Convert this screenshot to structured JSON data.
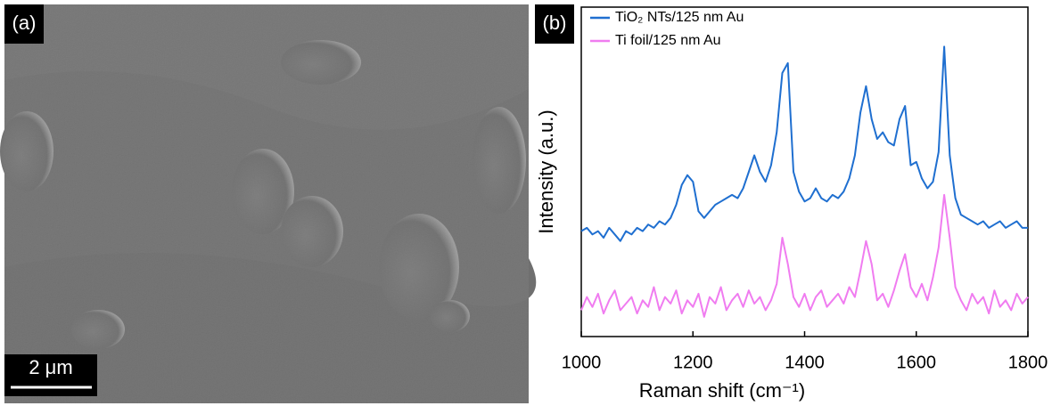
{
  "panel_a": {
    "label": "(a)",
    "scale_bar": "2 μm"
  },
  "chart_data": {
    "type": "line",
    "panel_label": "(b)",
    "xlabel": "Raman shift (cm⁻¹)",
    "ylabel": "Intensity (a.u.)",
    "xlim": [
      1000,
      1800
    ],
    "xticks": [
      1000,
      1200,
      1400,
      1600,
      1800
    ],
    "ylim": [
      0,
      100
    ],
    "x": [
      1000,
      1010,
      1020,
      1030,
      1040,
      1050,
      1060,
      1070,
      1080,
      1090,
      1100,
      1110,
      1120,
      1130,
      1140,
      1150,
      1160,
      1170,
      1180,
      1190,
      1200,
      1210,
      1220,
      1230,
      1240,
      1250,
      1260,
      1270,
      1280,
      1290,
      1300,
      1310,
      1320,
      1330,
      1340,
      1350,
      1360,
      1370,
      1380,
      1390,
      1400,
      1410,
      1420,
      1430,
      1440,
      1450,
      1460,
      1470,
      1480,
      1490,
      1500,
      1510,
      1520,
      1530,
      1540,
      1550,
      1560,
      1570,
      1580,
      1590,
      1600,
      1610,
      1620,
      1630,
      1640,
      1650,
      1660,
      1670,
      1680,
      1690,
      1700,
      1710,
      1720,
      1730,
      1740,
      1750,
      1760,
      1770,
      1780,
      1790,
      1800
    ],
    "series": [
      {
        "name": "TiO₂ NTs/125 nm Au",
        "color": "#1f6fd0",
        "values": [
          32,
          33,
          31,
          32,
          30,
          33,
          31,
          29,
          32,
          31,
          33,
          32,
          34,
          33,
          35,
          34,
          36,
          40,
          46,
          49,
          47,
          38,
          36,
          38,
          40,
          41,
          42,
          43,
          42,
          45,
          50,
          55,
          50,
          47,
          52,
          62,
          80,
          83,
          50,
          44,
          41,
          42,
          45,
          42,
          41,
          43,
          42,
          44,
          48,
          55,
          68,
          76,
          66,
          60,
          62,
          59,
          58,
          66,
          70,
          52,
          53,
          48,
          45,
          47,
          56,
          88,
          55,
          42,
          37,
          36,
          35,
          34,
          35,
          33,
          34,
          35,
          33,
          34,
          35,
          33,
          33
        ]
      },
      {
        "name": "Ti foil/125 nm Au",
        "color": "#f07cf0",
        "values": [
          8,
          12,
          9,
          13,
          7,
          11,
          14,
          8,
          10,
          12,
          7,
          11,
          9,
          15,
          8,
          12,
          10,
          14,
          7,
          11,
          9,
          13,
          6,
          12,
          10,
          15,
          8,
          11,
          13,
          9,
          14,
          10,
          12,
          8,
          11,
          16,
          30,
          22,
          12,
          9,
          13,
          8,
          12,
          14,
          9,
          11,
          13,
          10,
          15,
          12,
          20,
          29,
          22,
          11,
          13,
          9,
          14,
          20,
          25,
          15,
          12,
          16,
          11,
          18,
          27,
          43,
          30,
          15,
          11,
          8,
          13,
          10,
          12,
          7,
          14,
          9,
          11,
          8,
          13,
          10,
          12
        ]
      }
    ]
  }
}
